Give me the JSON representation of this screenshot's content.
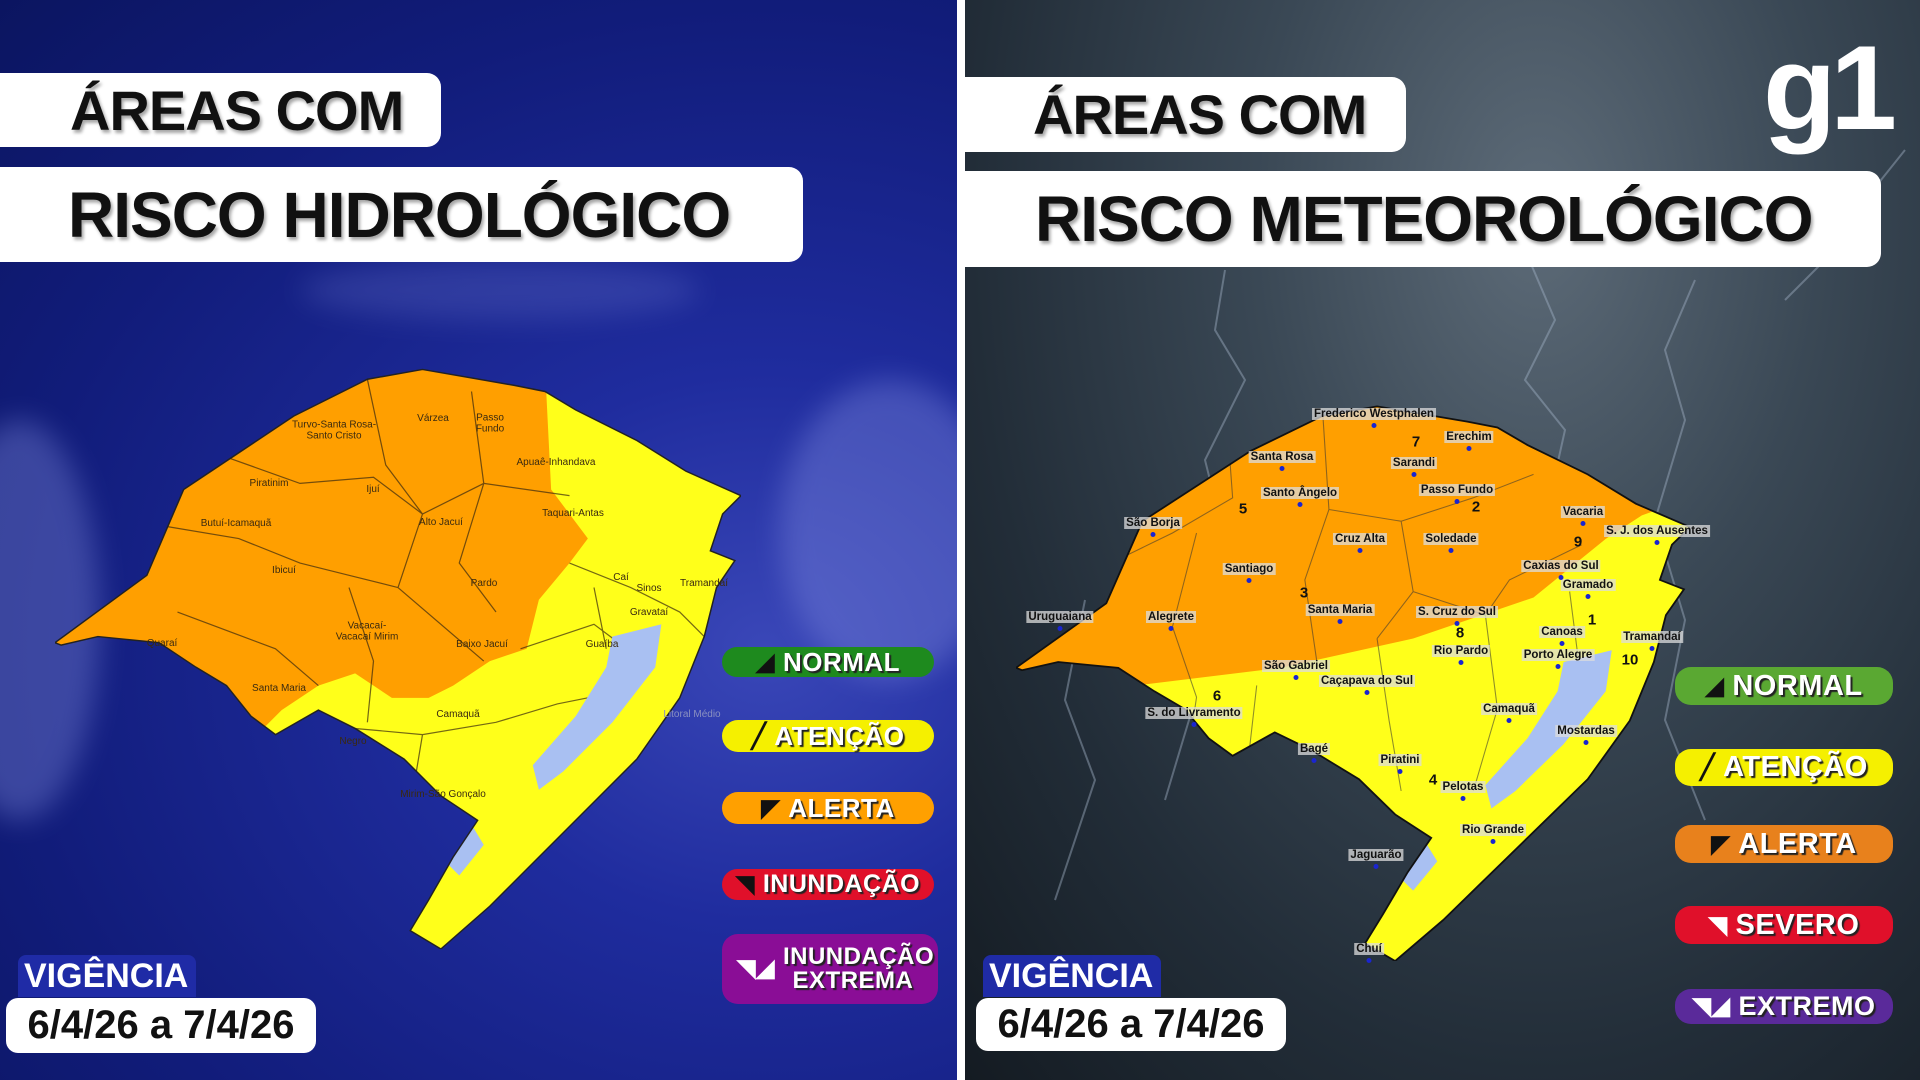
{
  "left": {
    "title_line1": "ÁREAS COM",
    "title_line2": "RISCO HIDROLÓGICO",
    "regions": [
      "Turvo-Santa Rosa-Santo Cristo",
      "Várzea",
      "Passo Fundo",
      "Apuaê-Inhandava",
      "Piratinim",
      "Ijuí",
      "Butuí-Icamaquã",
      "Alto Jacuí",
      "Taquari-Antas",
      "Ibicuí",
      "Pardo",
      "Caí",
      "Sinos",
      "Tramandaí",
      "Gravataí",
      "Vacacaí-Vacacaí Mirim",
      "Baixo Jacuí",
      "Guaíba",
      "Quaraí",
      "Santa Maria",
      "Camaquã",
      "Litoral Médio",
      "Negro",
      "Mirim-São Gonçalo"
    ],
    "legend": [
      {
        "label": "NORMAL",
        "color": "#1e8a1e",
        "icon": "normal-level-icon"
      },
      {
        "label": "ATENÇÃO",
        "color": "#f5f000",
        "icon": "attention-slash-icon"
      },
      {
        "label": "ALERTA",
        "color": "#ffa000",
        "icon": "alert-level-icon"
      },
      {
        "label": "INUNDAÇÃO",
        "color": "#e0102a",
        "icon": "flood-icon"
      },
      {
        "label": "INUNDAÇÃO EXTREMA",
        "color": "#8a0d96",
        "icon": "extreme-flood-icon"
      }
    ],
    "validity_label": "VIGÊNCIA",
    "validity_dates": "6/4/26 a 7/4/26",
    "map_colors": {
      "alerta": "#ff9f00",
      "atencao": "#ffff1a",
      "water": "#a9c0f2"
    }
  },
  "right": {
    "title_line1": "ÁREAS COM",
    "title_line2": "RISCO METEOROLÓGICO",
    "logo": "g1",
    "cities": [
      "Frederico Westphalen",
      "Erechim",
      "Santa Rosa",
      "Sarandi",
      "Santo Ângelo",
      "Passo Fundo",
      "Vacaria",
      "São Borja",
      "Cruz Alta",
      "Soledade",
      "S. J. dos Ausentes",
      "Caxias do Sul",
      "Santiago",
      "Gramado",
      "Santa Maria",
      "S. Cruz do Sul",
      "Uruguaiana",
      "Alegrete",
      "Canoas",
      "Tramandaí",
      "Rio Pardo",
      "Porto Alegre",
      "São Gabriel",
      "Caçapava do Sul",
      "S. do Livramento",
      "Camaquã",
      "Mostardas",
      "Bagé",
      "Piratini",
      "Pelotas",
      "Rio Grande",
      "Jaguarão",
      "Chuí"
    ],
    "zone_numbers": [
      "7",
      "5",
      "2",
      "9",
      "3",
      "1",
      "8",
      "10",
      "6",
      "4"
    ],
    "legend": [
      {
        "label": "NORMAL",
        "color": "#5aa832",
        "icon": "normal-level-icon"
      },
      {
        "label": "ATENÇÃO",
        "color": "#f5f000",
        "icon": "attention-slash-icon"
      },
      {
        "label": "ALERTA",
        "color": "#e8811c",
        "icon": "alert-level-icon"
      },
      {
        "label": "SEVERO",
        "color": "#e0102a",
        "icon": "severe-icon"
      },
      {
        "label": "EXTREMO",
        "color": "#5a2a9a",
        "icon": "extreme-icon"
      }
    ],
    "validity_label": "VIGÊNCIA",
    "validity_dates": "6/4/26 a 7/4/26",
    "map_colors": {
      "alerta": "#ff9f00",
      "atencao": "#ffff1a",
      "water": "#a9c0f2"
    }
  }
}
